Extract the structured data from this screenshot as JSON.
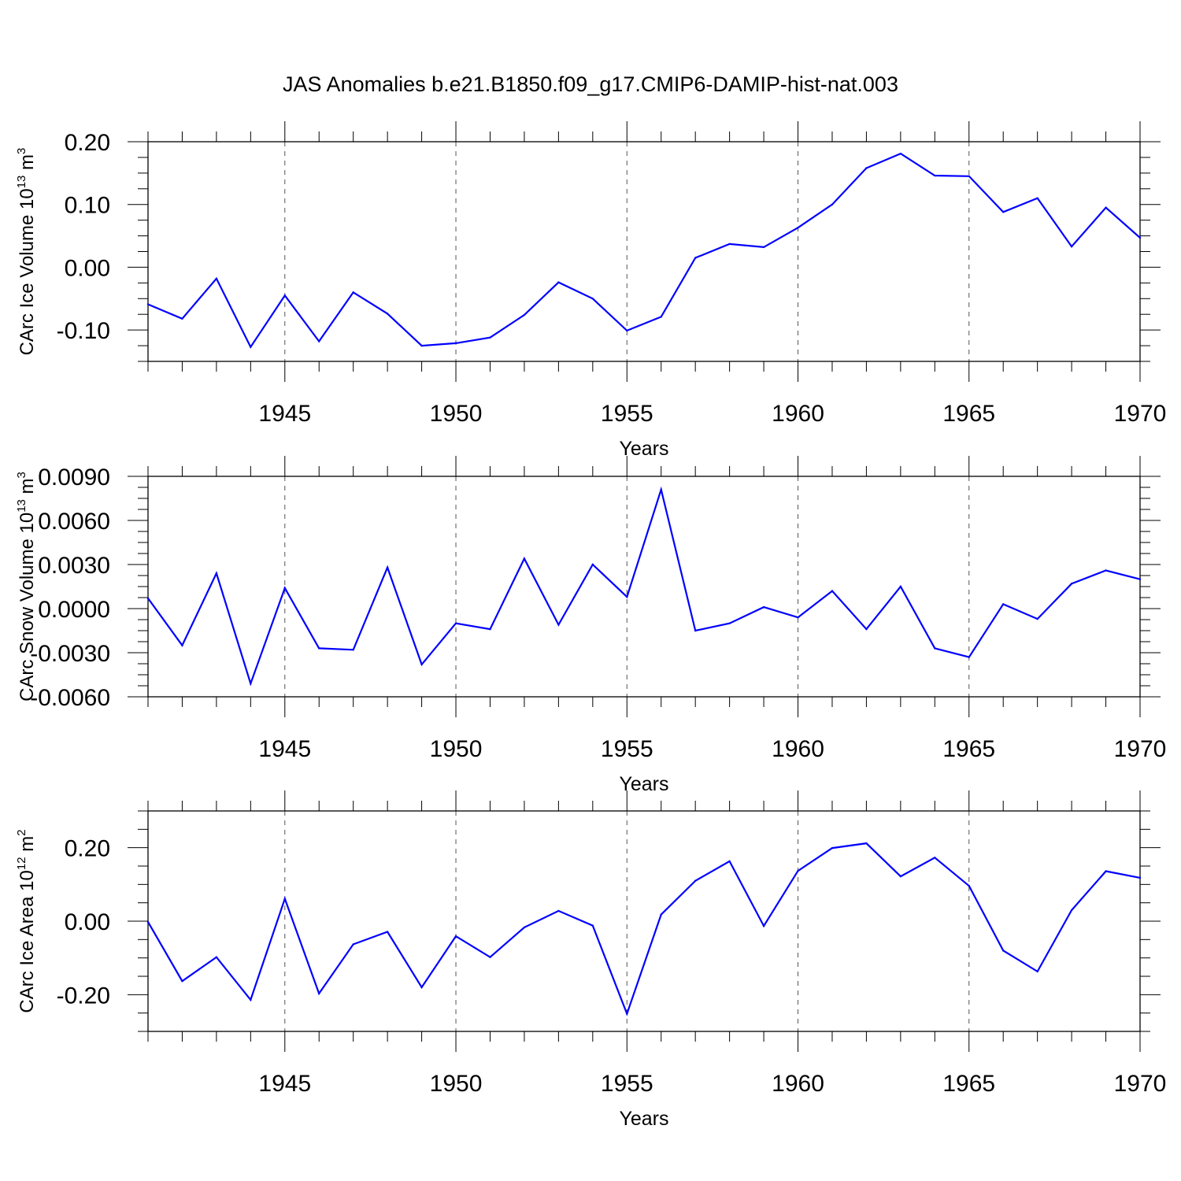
{
  "chart_data": [
    {
      "type": "line",
      "title": "JAS Anomalies b.e21.B1850.f09_g17.CMIP6-DAMIP-hist-nat.003",
      "xlabel": "Years",
      "ylabel": {
        "text": "CArc Ice Volume 10",
        "sup": "13",
        "unit": " m",
        "unit_sup": "3"
      },
      "xlim": [
        1941,
        1970
      ],
      "ylim": [
        -0.15,
        0.2
      ],
      "x_ticks": [
        "1945",
        "1950",
        "1955",
        "1960",
        "1965",
        "1970"
      ],
      "y_ticks": [
        {
          "v": 0.2,
          "label": "0.20"
        },
        {
          "v": 0.1,
          "label": "0.10"
        },
        {
          "v": 0.0,
          "label": "0.00"
        },
        {
          "v": -0.1,
          "label": "-0.10"
        }
      ],
      "series": [
        {
          "name": "CArc Ice Volume",
          "color": "#0000ff",
          "x": [
            1941,
            1942,
            1943,
            1944,
            1945,
            1946,
            1947,
            1948,
            1949,
            1950,
            1951,
            1952,
            1953,
            1954,
            1955,
            1956,
            1957,
            1958,
            1959,
            1960,
            1961,
            1962,
            1963,
            1964,
            1965,
            1966,
            1967,
            1968,
            1969,
            1970
          ],
          "values": [
            -0.059,
            -0.082,
            -0.018,
            -0.127,
            -0.045,
            -0.118,
            -0.04,
            -0.074,
            -0.125,
            -0.121,
            -0.112,
            -0.076,
            -0.024,
            -0.05,
            -0.101,
            -0.079,
            0.015,
            0.037,
            0.032,
            0.063,
            0.1,
            0.158,
            0.181,
            0.146,
            0.145,
            0.088,
            0.11,
            0.033,
            0.095,
            0.047
          ]
        }
      ]
    },
    {
      "type": "line",
      "title": "",
      "xlabel": "Years",
      "ylabel": {
        "text": "CArc Snow Volume 10",
        "sup": "13",
        "unit": " m",
        "unit_sup": "3"
      },
      "xlim": [
        1941,
        1970
      ],
      "ylim": [
        -0.006,
        0.009
      ],
      "x_ticks": [
        "1945",
        "1950",
        "1955",
        "1960",
        "1965",
        "1970"
      ],
      "y_ticks": [
        {
          "v": 0.009,
          "label": "0.0090"
        },
        {
          "v": 0.006,
          "label": "0.0060"
        },
        {
          "v": 0.003,
          "label": "0.0030"
        },
        {
          "v": 0.0,
          "label": "0.0000"
        },
        {
          "v": -0.003,
          "label": "-0.0030"
        },
        {
          "v": -0.006,
          "label": "-0.0060"
        }
      ],
      "series": [
        {
          "name": "CArc Snow Volume",
          "color": "#0000ff",
          "x": [
            1941,
            1942,
            1943,
            1944,
            1945,
            1946,
            1947,
            1948,
            1949,
            1950,
            1951,
            1952,
            1953,
            1954,
            1955,
            1956,
            1957,
            1958,
            1959,
            1960,
            1961,
            1962,
            1963,
            1964,
            1965,
            1966,
            1967,
            1968,
            1969,
            1970
          ],
          "values": [
            0.0007,
            -0.0025,
            0.0024,
            -0.0051,
            0.0014,
            -0.0027,
            -0.0028,
            0.0028,
            -0.0038,
            -0.001,
            -0.0014,
            0.0034,
            -0.0011,
            0.003,
            0.0008,
            0.0081,
            -0.0015,
            -0.001,
            0.0001,
            -0.0006,
            0.0012,
            -0.0014,
            0.0015,
            -0.0027,
            -0.0033,
            0.0003,
            -0.0007,
            0.0017,
            0.0026,
            0.002
          ]
        }
      ]
    },
    {
      "type": "line",
      "title": "",
      "xlabel": "Years",
      "ylabel": {
        "text": "CArc Ice Area 10",
        "sup": "12",
        "unit": " m",
        "unit_sup": "2"
      },
      "xlim": [
        1941,
        1970
      ],
      "ylim": [
        -0.3,
        0.3
      ],
      "x_ticks": [
        "1945",
        "1950",
        "1955",
        "1960",
        "1965",
        "1970"
      ],
      "y_ticks": [
        {
          "v": 0.2,
          "label": "0.20"
        },
        {
          "v": 0.0,
          "label": "0.00"
        },
        {
          "v": -0.2,
          "label": "-0.20"
        }
      ],
      "series": [
        {
          "name": "CArc Ice Area",
          "color": "#0000ff",
          "x": [
            1941,
            1942,
            1943,
            1944,
            1945,
            1946,
            1947,
            1948,
            1949,
            1950,
            1951,
            1952,
            1953,
            1954,
            1955,
            1956,
            1957,
            1958,
            1959,
            1960,
            1961,
            1962,
            1963,
            1964,
            1965,
            1966,
            1967,
            1968,
            1969,
            1970
          ],
          "values": [
            -0.002,
            -0.163,
            -0.098,
            -0.214,
            0.061,
            -0.197,
            -0.063,
            -0.029,
            -0.18,
            -0.041,
            -0.098,
            -0.017,
            0.028,
            -0.012,
            -0.252,
            0.018,
            0.11,
            0.163,
            -0.013,
            0.137,
            0.199,
            0.212,
            0.122,
            0.173,
            0.096,
            -0.08,
            -0.137,
            0.03,
            0.136,
            0.118
          ]
        }
      ]
    }
  ]
}
